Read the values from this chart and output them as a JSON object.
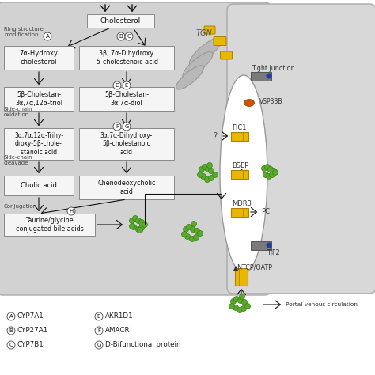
{
  "bg_color": "#ffffff",
  "cell_left_color": "#d0d0d0",
  "cell_right_color": "#d8d8d8",
  "box_color": "#f5f5f5",
  "box_edge": "#888888",
  "arrow_color": "#111111",
  "yellow_color": "#e8b800",
  "yellow_edge": "#b08000",
  "green_dot_color": "#5aaa30",
  "green_dot_edge": "#3a8010",
  "gray_bar_color": "#7a7a7a",
  "blue_dot_color": "#1a3faa",
  "orange_color": "#cc5500",
  "tgn_color": "#b0b0b0",
  "legend": [
    [
      "A",
      "CYP7A1",
      "E",
      "AKR1D1"
    ],
    [
      "B",
      "CYP27A1",
      "F",
      "AMACR"
    ],
    [
      "C",
      "CYP7B1",
      "G",
      "D-Bifunctional protein"
    ]
  ]
}
